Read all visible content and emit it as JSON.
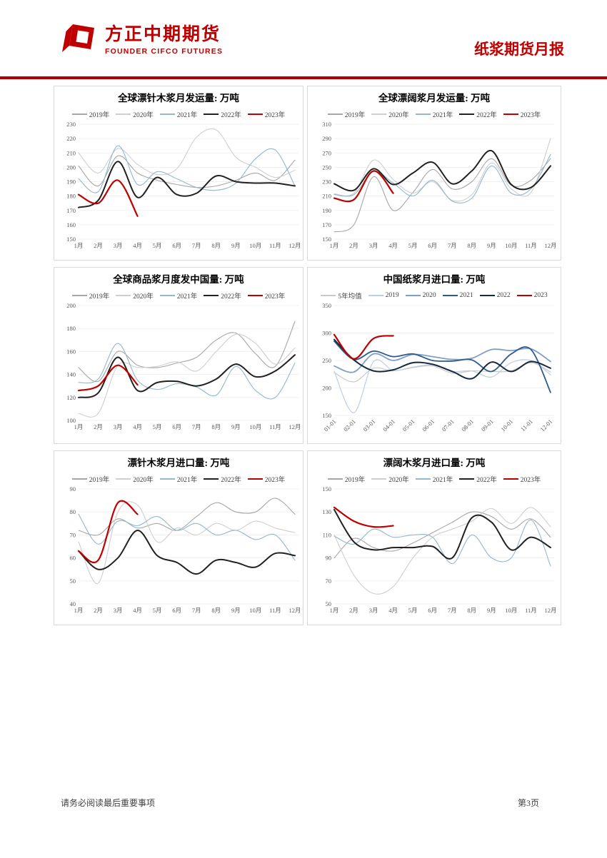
{
  "header": {
    "brand_cn": "方正中期期货",
    "brand_en": "FOUNDER CIFCO FUTURES",
    "report_title": "纸浆期货月报"
  },
  "footer": {
    "disclaimer": "请务必阅读最后重要事项",
    "page_number": "第3页"
  },
  "colors": {
    "accent": "#c00000",
    "rule": "#b00000",
    "grid_line": "#ededed",
    "axis_text": "#595959",
    "box_border": "#d9d9d9"
  },
  "chart_data": [
    {
      "type": "line",
      "title": "全球漂针木浆月发运量: 万吨",
      "ylim": [
        150,
        230
      ],
      "ystep": 10,
      "x_rotate": false,
      "categories": [
        "1月",
        "2月",
        "3月",
        "4月",
        "5月",
        "6月",
        "7月",
        "8月",
        "9月",
        "10月",
        "11月",
        "12月"
      ],
      "series": [
        {
          "name": "2019年",
          "color": "#a6a6a6",
          "width": 1.1,
          "values": [
            201,
            187,
            208,
            196,
            191,
            188,
            186,
            187,
            191,
            196,
            191,
            205
          ]
        },
        {
          "name": "2020年",
          "color": "#d0cece",
          "width": 1.1,
          "values": [
            210,
            196,
            213,
            202,
            195,
            199,
            221,
            226,
            207,
            200,
            193,
            198
          ]
        },
        {
          "name": "2021年",
          "color": "#93b7cb",
          "width": 1.1,
          "values": [
            192,
            183,
            215,
            188,
            197,
            192,
            186,
            184,
            189,
            206,
            212,
            187
          ]
        },
        {
          "name": "2022年",
          "color": "#212121",
          "width": 2,
          "values": [
            172,
            177,
            204,
            179,
            193,
            181,
            182,
            194,
            190,
            189,
            189,
            187
          ]
        },
        {
          "name": "2023年",
          "color": "#c00000",
          "width": 2.2,
          "values": [
            181,
            175,
            191,
            166,
            null,
            null,
            null,
            null,
            null,
            null,
            null,
            null
          ]
        }
      ]
    },
    {
      "type": "line",
      "title": "全球漂阔浆月发运量: 万吨",
      "ylim": [
        150,
        310
      ],
      "ystep": 20,
      "x_rotate": false,
      "categories": [
        "1月",
        "2月",
        "3月",
        "4月",
        "5月",
        "6月",
        "7月",
        "8月",
        "9月",
        "10月",
        "11月",
        "12月"
      ],
      "series": [
        {
          "name": "2019年",
          "color": "#a6a6a6",
          "width": 1.1,
          "values": [
            160,
            170,
            237,
            190,
            215,
            247,
            220,
            230,
            262,
            225,
            232,
            262
          ]
        },
        {
          "name": "2020年",
          "color": "#d0cece",
          "width": 1.1,
          "values": [
            213,
            214,
            260,
            233,
            214,
            230,
            204,
            212,
            256,
            220,
            215,
            290
          ]
        },
        {
          "name": "2021年",
          "color": "#93b7cb",
          "width": 1.1,
          "values": [
            212,
            212,
            244,
            228,
            210,
            232,
            203,
            207,
            252,
            214,
            220,
            268
          ]
        },
        {
          "name": "2022年",
          "color": "#212121",
          "width": 2,
          "values": [
            227,
            218,
            248,
            226,
            242,
            257,
            227,
            245,
            273,
            226,
            222,
            252
          ]
        },
        {
          "name": "2023年",
          "color": "#c00000",
          "width": 2.2,
          "values": [
            207,
            205,
            245,
            214,
            null,
            null,
            null,
            null,
            null,
            null,
            null,
            null
          ]
        }
      ]
    },
    {
      "type": "line",
      "title": "全球商品浆月度发中国量: 万吨",
      "ylim": [
        100,
        200
      ],
      "ystep": 20,
      "x_rotate": false,
      "categories": [
        "1月",
        "2月",
        "3月",
        "4月",
        "5月",
        "6月",
        "7月",
        "8月",
        "9月",
        "10月",
        "11月",
        "12月"
      ],
      "series": [
        {
          "name": "2019年",
          "color": "#a6a6a6",
          "width": 1.1,
          "values": [
            146,
            134,
            160,
            148,
            146,
            150,
            155,
            170,
            176,
            158,
            147,
            186
          ]
        },
        {
          "name": "2020年",
          "color": "#d0cece",
          "width": 1.1,
          "values": [
            106,
            106,
            148,
            146,
            147,
            151,
            143,
            160,
            175,
            167,
            149,
            163
          ]
        },
        {
          "name": "2021年",
          "color": "#93b7cb",
          "width": 1.1,
          "values": [
            133,
            136,
            167,
            135,
            127,
            132,
            129,
            122,
            147,
            126,
            120,
            150
          ]
        },
        {
          "name": "2022年",
          "color": "#212121",
          "width": 2,
          "values": [
            120,
            124,
            155,
            126,
            133,
            134,
            130,
            136,
            149,
            138,
            143,
            157
          ]
        },
        {
          "name": "2023年",
          "color": "#c00000",
          "width": 2.2,
          "values": [
            126,
            130,
            148,
            131,
            null,
            null,
            null,
            null,
            null,
            null,
            null,
            null
          ]
        }
      ]
    },
    {
      "type": "line",
      "title": "中国纸浆月进口量: 万吨",
      "ylim": [
        150,
        350
      ],
      "ystep": 50,
      "x_rotate": true,
      "categories": [
        "01-01",
        "02-01",
        "03-01",
        "04-01",
        "05-01",
        "06-01",
        "07-01",
        "08-01",
        "09-01",
        "10-01",
        "11-01",
        "12-01"
      ],
      "series": [
        {
          "name": "5年均值",
          "color": "#c9c9c9",
          "width": 1.2,
          "values": [
            228,
            211,
            236,
            231,
            237,
            240,
            227,
            231,
            230,
            231,
            246,
            229
          ]
        },
        {
          "name": "2019",
          "color": "#bdcfe5",
          "width": 1.2,
          "values": [
            230,
            155,
            248,
            232,
            238,
            242,
            230,
            231,
            220,
            246,
            250,
            224
          ]
        },
        {
          "name": "2020",
          "color": "#7d9ec8",
          "width": 1.8,
          "values": [
            240,
            229,
            262,
            250,
            261,
            257,
            252,
            254,
            270,
            268,
            271,
            248
          ]
        },
        {
          "name": "2021",
          "color": "#2e5b8d",
          "width": 1.8,
          "values": [
            285,
            252,
            267,
            257,
            262,
            250,
            249,
            251,
            230,
            262,
            270,
            192
          ]
        },
        {
          "name": "2022",
          "color": "#16293f",
          "width": 2,
          "values": [
            288,
            251,
            231,
            233,
            246,
            243,
            230,
            217,
            247,
            230,
            248,
            236
          ]
        },
        {
          "name": "2023",
          "color": "#c00000",
          "width": 2.2,
          "values": [
            297,
            253,
            290,
            295,
            null,
            null,
            null,
            null,
            null,
            null,
            null,
            null
          ]
        }
      ]
    },
    {
      "type": "line",
      "title": "漂针木浆月进口量: 万吨",
      "ylim": [
        40,
        90
      ],
      "ystep": 10,
      "x_rotate": false,
      "categories": [
        "1月",
        "2月",
        "3月",
        "4月",
        "5月",
        "6月",
        "7月",
        "8月",
        "9月",
        "10月",
        "11月",
        "12月"
      ],
      "series": [
        {
          "name": "2019年",
          "color": "#a6a6a6",
          "width": 1.1,
          "values": [
            72,
            70,
            77,
            73,
            75,
            72,
            78,
            84,
            80,
            80,
            86,
            79
          ]
        },
        {
          "name": "2020年",
          "color": "#d0cece",
          "width": 1.1,
          "values": [
            67,
            49,
            80,
            83,
            67,
            73,
            70,
            75,
            72,
            76,
            73,
            71
          ]
        },
        {
          "name": "2021年",
          "color": "#93b7cb",
          "width": 1.1,
          "values": [
            79,
            66,
            76,
            74,
            78,
            72,
            75,
            70,
            72,
            68,
            70,
            59
          ]
        },
        {
          "name": "2022年",
          "color": "#212121",
          "width": 2,
          "values": [
            63,
            55,
            60,
            72,
            61,
            58,
            53,
            59,
            58,
            56,
            62,
            61
          ]
        },
        {
          "name": "2023年",
          "color": "#c00000",
          "width": 2.2,
          "values": [
            63,
            59,
            84,
            79,
            null,
            null,
            null,
            null,
            null,
            null,
            null,
            null
          ]
        }
      ]
    },
    {
      "type": "line",
      "title": "漂阔木浆月进口量: 万吨",
      "ylim": [
        50,
        150
      ],
      "ystep": 20,
      "x_rotate": false,
      "categories": [
        "1月",
        "2月",
        "3月",
        "4月",
        "5月",
        "6月",
        "7月",
        "8月",
        "9月",
        "10月",
        "11月",
        "12月"
      ],
      "series": [
        {
          "name": "2019年",
          "color": "#a6a6a6",
          "width": 1.1,
          "values": [
            90,
            107,
            99,
            96,
            103,
            112,
            121,
            130,
            126,
            115,
            124,
            108
          ]
        },
        {
          "name": "2020年",
          "color": "#d0cece",
          "width": 1.1,
          "values": [
            110,
            75,
            59,
            65,
            90,
            108,
            115,
            122,
            133,
            120,
            134,
            117
          ]
        },
        {
          "name": "2021年",
          "color": "#93b7cb",
          "width": 1.1,
          "values": [
            109,
            102,
            115,
            108,
            110,
            108,
            85,
            110,
            90,
            90,
            123,
            83
          ]
        },
        {
          "name": "2022年",
          "color": "#212121",
          "width": 2,
          "values": [
            132,
            104,
            97,
            99,
            99,
            100,
            90,
            125,
            121,
            97,
            108,
            99
          ]
        },
        {
          "name": "2023年",
          "color": "#c00000",
          "width": 2.2,
          "values": [
            134,
            122,
            117,
            118,
            null,
            null,
            null,
            null,
            null,
            null,
            null,
            null
          ]
        }
      ]
    }
  ]
}
